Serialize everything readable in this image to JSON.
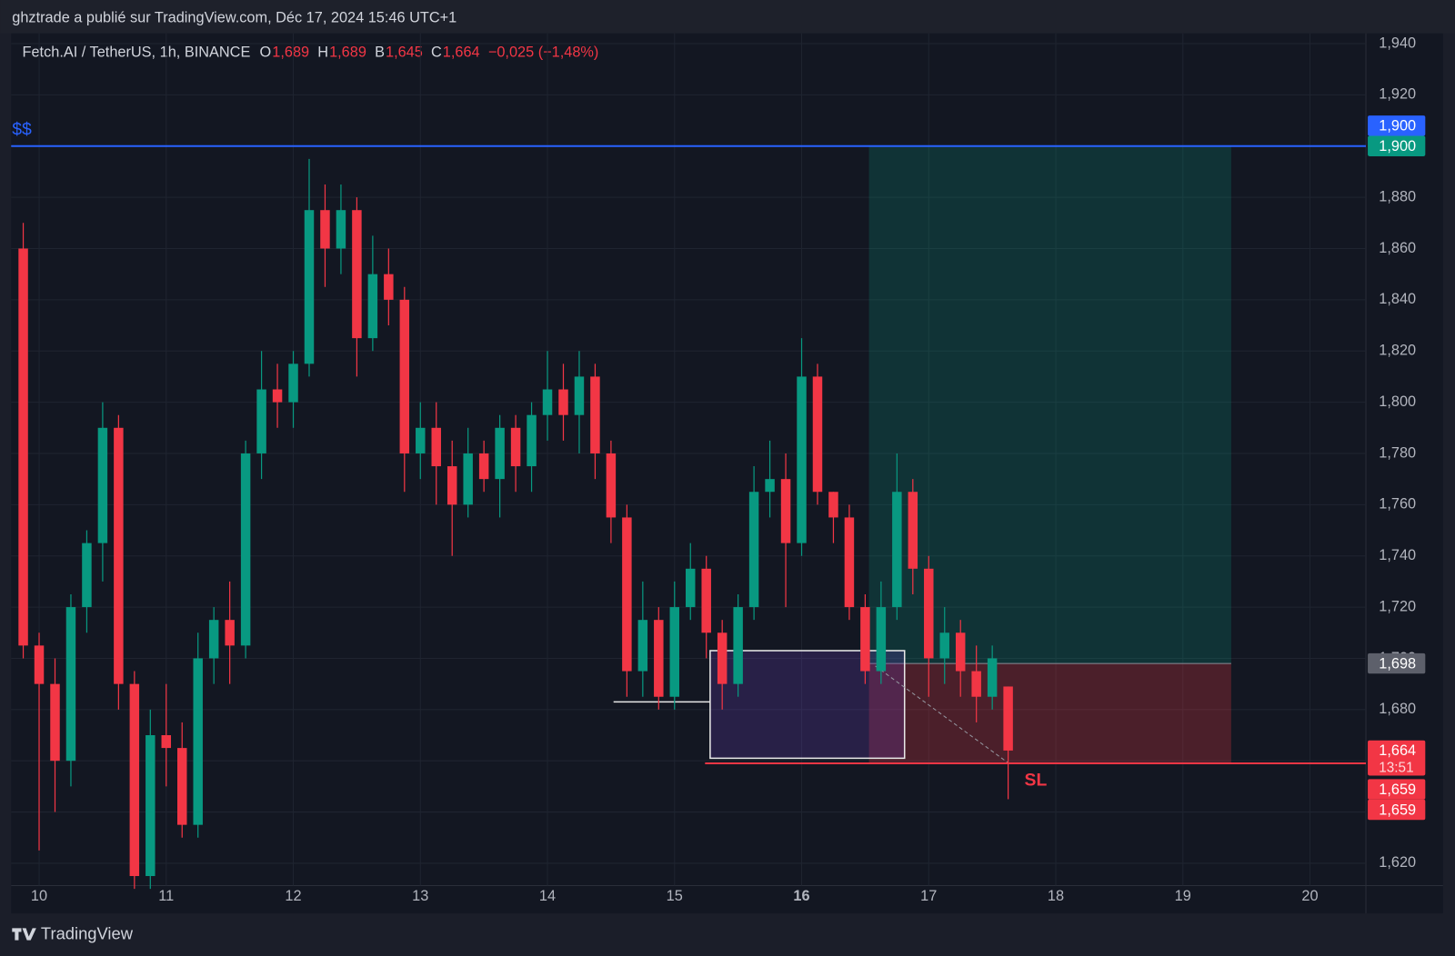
{
  "header": {
    "publisher": "ghztrade a publié sur TradingView.com, Déc 17, 2024 15:46 UTC+1",
    "ohlc": [
      {
        "key": "O",
        "value": 1.689,
        "label": "1,689"
      },
      {
        "key": "H",
        "value": 1.689,
        "label": "1,689"
      },
      {
        "key": "B",
        "value": 1.645,
        "label": "1,645"
      },
      {
        "key": "C",
        "value": 1.664,
        "label": "1,664"
      }
    ],
    "change": "−0,025 (−1,48%)"
  },
  "chart_data": {
    "type": "candlestick",
    "title": "Fetch.AI / TetherUS, 1h, BINANCE",
    "x": [
      9.875,
      10.0,
      10.125,
      10.25,
      10.375,
      10.5,
      10.625,
      10.75,
      10.875,
      11.0,
      11.125,
      11.25,
      11.375,
      11.5,
      11.625,
      11.75,
      11.875,
      12.0,
      12.125,
      12.25,
      12.375,
      12.5,
      12.625,
      12.75,
      12.875,
      13.0,
      13.125,
      13.25,
      13.375,
      13.5,
      13.625,
      13.75,
      13.875,
      14.0,
      14.125,
      14.25,
      14.375,
      14.5,
      14.625,
      14.75,
      14.875,
      15.0,
      15.125,
      15.25,
      15.375,
      15.5,
      15.625,
      15.75,
      15.875,
      16.0,
      16.125,
      16.25,
      16.375,
      16.5,
      16.625,
      16.75,
      16.875,
      17.0,
      17.125,
      17.25,
      17.375,
      17.5,
      17.625
    ],
    "open": [
      1.86,
      1.705,
      1.69,
      1.66,
      1.72,
      1.745,
      1.79,
      1.69,
      1.615,
      1.67,
      1.665,
      1.635,
      1.7,
      1.715,
      1.705,
      1.78,
      1.805,
      1.8,
      1.815,
      1.875,
      1.86,
      1.875,
      1.825,
      1.85,
      1.84,
      1.78,
      1.79,
      1.775,
      1.76,
      1.78,
      1.77,
      1.79,
      1.775,
      1.795,
      1.805,
      1.795,
      1.81,
      1.78,
      1.755,
      1.695,
      1.715,
      1.685,
      1.72,
      1.735,
      1.71,
      1.69,
      1.72,
      1.765,
      1.77,
      1.745,
      1.81,
      1.765,
      1.755,
      1.72,
      1.695,
      1.72,
      1.765,
      1.735,
      1.7,
      1.71,
      1.695,
      1.685,
      1.689
    ],
    "high": [
      1.87,
      1.71,
      1.7,
      1.725,
      1.75,
      1.8,
      1.795,
      1.695,
      1.68,
      1.69,
      1.675,
      1.71,
      1.72,
      1.73,
      1.785,
      1.82,
      1.815,
      1.82,
      1.895,
      1.885,
      1.885,
      1.88,
      1.865,
      1.86,
      1.845,
      1.8,
      1.8,
      1.785,
      1.79,
      1.785,
      1.795,
      1.795,
      1.8,
      1.82,
      1.815,
      1.82,
      1.815,
      1.785,
      1.76,
      1.73,
      1.72,
      1.73,
      1.745,
      1.74,
      1.715,
      1.725,
      1.775,
      1.785,
      1.78,
      1.825,
      1.815,
      1.765,
      1.76,
      1.725,
      1.73,
      1.78,
      1.77,
      1.74,
      1.72,
      1.715,
      1.705,
      1.705,
      1.689
    ],
    "low": [
      1.7,
      1.625,
      1.64,
      1.65,
      1.71,
      1.73,
      1.68,
      1.61,
      1.61,
      1.65,
      1.63,
      1.63,
      1.69,
      1.69,
      1.7,
      1.77,
      1.79,
      1.79,
      1.81,
      1.845,
      1.85,
      1.81,
      1.82,
      1.83,
      1.765,
      1.77,
      1.76,
      1.74,
      1.755,
      1.765,
      1.755,
      1.765,
      1.765,
      1.785,
      1.785,
      1.78,
      1.77,
      1.745,
      1.685,
      1.685,
      1.68,
      1.68,
      1.715,
      1.7,
      1.68,
      1.685,
      1.715,
      1.755,
      1.72,
      1.74,
      1.76,
      1.745,
      1.715,
      1.69,
      1.69,
      1.715,
      1.725,
      1.685,
      1.69,
      1.685,
      1.675,
      1.68,
      1.645
    ],
    "close": [
      1.705,
      1.69,
      1.66,
      1.72,
      1.745,
      1.79,
      1.69,
      1.615,
      1.67,
      1.665,
      1.635,
      1.7,
      1.715,
      1.705,
      1.78,
      1.805,
      1.8,
      1.815,
      1.875,
      1.86,
      1.875,
      1.825,
      1.85,
      1.84,
      1.78,
      1.79,
      1.775,
      1.76,
      1.78,
      1.77,
      1.79,
      1.775,
      1.795,
      1.805,
      1.795,
      1.81,
      1.78,
      1.755,
      1.695,
      1.715,
      1.685,
      1.72,
      1.735,
      1.71,
      1.69,
      1.72,
      1.765,
      1.77,
      1.745,
      1.81,
      1.765,
      1.755,
      1.72,
      1.695,
      1.72,
      1.765,
      1.735,
      1.7,
      1.71,
      1.695,
      1.685,
      1.7,
      1.664
    ],
    "up_color": "#089981",
    "down_color": "#f23645",
    "xlim": [
      9.78,
      20.44
    ],
    "xticks": [
      10,
      11,
      12,
      13,
      14,
      15,
      16,
      17,
      18,
      19,
      20
    ],
    "highlighted_xtick": 16,
    "ylim": [
      1.6113,
      1.944
    ],
    "yticks": [
      {
        "value": 1.62,
        "label": "1,620"
      },
      {
        "value": 1.64,
        "label": "1,640"
      },
      {
        "value": 1.66,
        "label": "1,660"
      },
      {
        "value": 1.68,
        "label": "1,680"
      },
      {
        "value": 1.7,
        "label": "1,700"
      },
      {
        "value": 1.72,
        "label": "1,720"
      },
      {
        "value": 1.74,
        "label": "1,740"
      },
      {
        "value": 1.76,
        "label": "1,760"
      },
      {
        "value": 1.78,
        "label": "1,780"
      },
      {
        "value": 1.8,
        "label": "1,800"
      },
      {
        "value": 1.82,
        "label": "1,820"
      },
      {
        "value": 1.84,
        "label": "1,840"
      },
      {
        "value": 1.86,
        "label": "1,860"
      },
      {
        "value": 1.88,
        "label": "1,880"
      },
      {
        "value": 1.9,
        "label": "1,900"
      },
      {
        "value": 1.92,
        "label": "1,920"
      },
      {
        "value": 1.94,
        "label": "1,940"
      }
    ],
    "grid": true,
    "level_line": {
      "value": 1.9,
      "label": "$$",
      "color": "#2962ff"
    },
    "position": {
      "start": 16.53,
      "end": 19.38,
      "entry": 1.698,
      "target": 1.9,
      "stop": 1.659
    },
    "zone_box": {
      "x": [
        15.28,
        16.81
      ],
      "y": [
        1.661,
        1.703
      ]
    },
    "low_line": {
      "x": [
        14.52,
        15.28
      ],
      "value": 1.683
    },
    "sl_line": {
      "start": 15.24,
      "value": 1.659,
      "label": "SL"
    },
    "dashed_line": {
      "x": [
        16.58,
        17.63
      ],
      "y": [
        1.697,
        1.659
      ]
    },
    "price_labels": [
      {
        "value": 1.9,
        "label": "1,900",
        "color": "#2962ff"
      },
      {
        "value": 1.9,
        "label": "1,900",
        "color": "#089981"
      },
      {
        "value": 1.698,
        "label": "1,698",
        "color": "#5d606b"
      },
      {
        "value": 1.664,
        "label": "1,664",
        "sublabel": "13:51",
        "color": "#f23645"
      },
      {
        "value": 1.659,
        "label": "1,659",
        "color": "#f23645"
      },
      {
        "value": 1.659,
        "label": "1,659",
        "color": "#f23645"
      }
    ]
  },
  "footer": {
    "brand": "TradingView"
  }
}
